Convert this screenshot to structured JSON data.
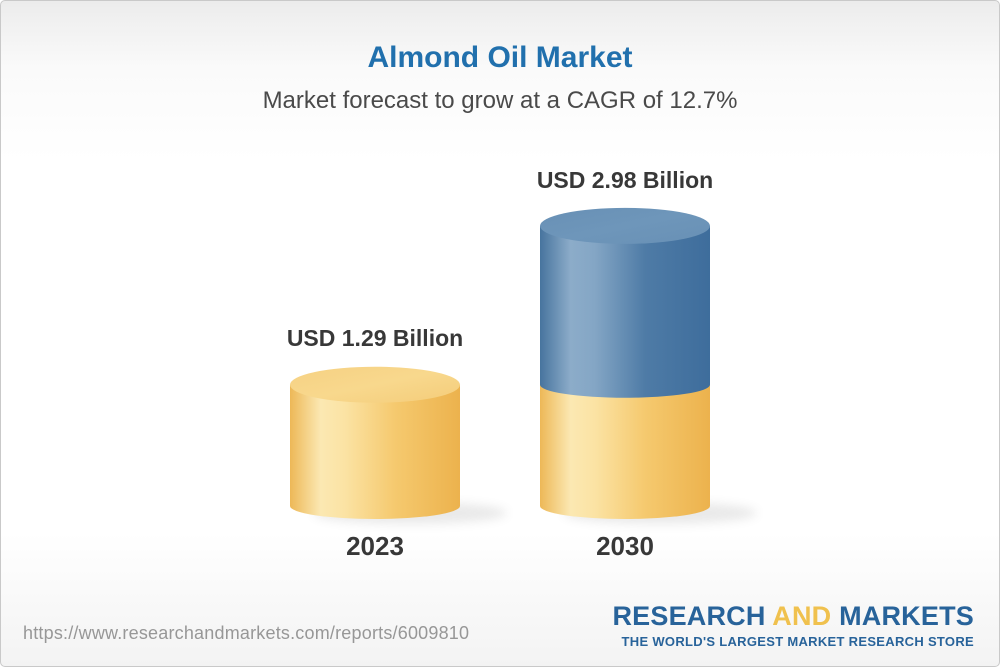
{
  "header": {
    "note": "title and subtitle are bound from chart_data"
  },
  "chart_data": {
    "type": "bar",
    "style": "3d-cylinder",
    "title": "Almond Oil Market",
    "subtitle": "Market forecast to grow at a CAGR of 12.7%",
    "cagr_percent": 12.7,
    "unit": "USD Billion",
    "categories": [
      "2023",
      "2030"
    ],
    "values": [
      1.29,
      2.98
    ],
    "value_labels": [
      "USD 1.29 Billion",
      "USD 2.98 Billion"
    ],
    "legend_position": "none",
    "grid": false,
    "colors": {
      "base_segment": "#f2c463",
      "base_segment_top": "#f8d88d",
      "growth_segment": "#4c7ba6",
      "growth_segment_top": "#6e96ba",
      "title_blue": "#2170ad",
      "label_dark": "#383838"
    }
  },
  "footer": {
    "url": "https://www.researchandmarkets.com/reports/6009810",
    "logo": {
      "part1": "RESEARCH",
      "part2": "AND",
      "part3": "MARKETS",
      "tagline": "THE WORLD'S LARGEST MARKET RESEARCH STORE",
      "blue": "#28639a",
      "yellow": "#f0c14e"
    }
  }
}
